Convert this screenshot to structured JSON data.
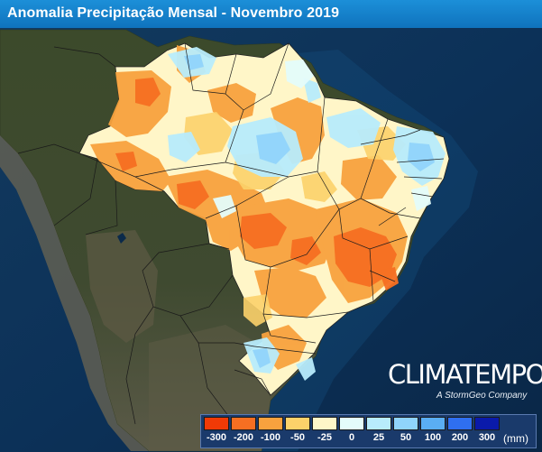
{
  "title": "Anomalia Precipitação Mensal - Novembro 2019",
  "brand": {
    "name": "CLIMATEMPO",
    "tagline": "A StormGeo Company"
  },
  "legend": {
    "unit": "(mm)",
    "items": [
      {
        "label": "-300",
        "color": "#f03a06"
      },
      {
        "label": "-200",
        "color": "#f66f22"
      },
      {
        "label": "-100",
        "color": "#f8a23e"
      },
      {
        "label": "-50",
        "color": "#fcd26a"
      },
      {
        "label": "-25",
        "color": "#fff6c8"
      },
      {
        "label": "0",
        "color": "#e4fcfb"
      },
      {
        "label": "25",
        "color": "#b8ecfc"
      },
      {
        "label": "50",
        "color": "#90d4fb"
      },
      {
        "label": "100",
        "color": "#5aaef3"
      },
      {
        "label": "200",
        "color": "#2f6ff0"
      },
      {
        "label": "300",
        "color": "#0a1aaa"
      }
    ]
  },
  "colors": {
    "ocean": "#0b2a4a",
    "land": "#3a4a2a",
    "title_bar": "#1581c8"
  }
}
